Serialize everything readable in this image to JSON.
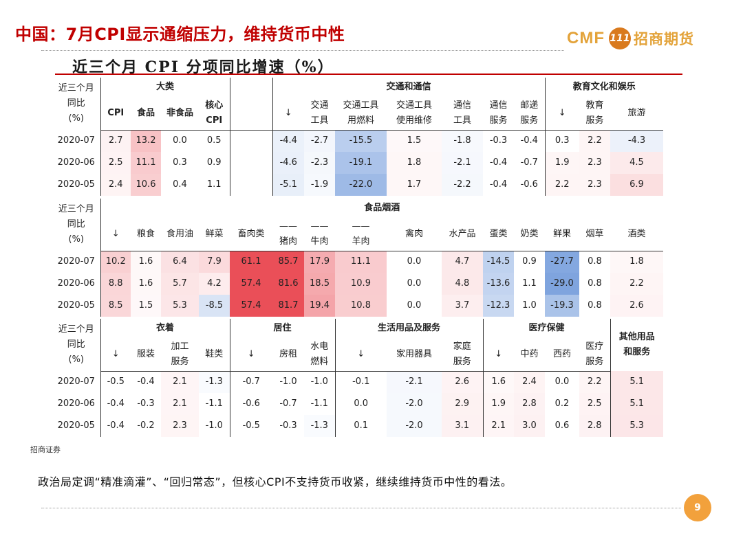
{
  "header": {
    "title": "中国：7月CPI显示通缩压力，维持货币中性",
    "logo_latin": "CMF",
    "logo_mark": "111",
    "logo_cn": "招商期货"
  },
  "chart_title": "近三个月 CPI 分项同比增速（%）",
  "rowhead": [
    "近三个月",
    "同比",
    "(%)"
  ],
  "months": [
    "2020-07",
    "2020-06",
    "2020-05"
  ],
  "heat_colors": {
    "neg": "#4a7fd1",
    "pos": "#e8404a"
  },
  "blocks": [
    {
      "groups": [
        {
          "label": "大类",
          "span": 4
        },
        {
          "label": "",
          "span": 1
        },
        {
          "label": "交通和通信",
          "span": 7
        },
        {
          "label": "教育文化和娱乐",
          "span": 3
        }
      ],
      "cols": [
        {
          "l": [
            "CPI"
          ],
          "b": true,
          "w": 44
        },
        {
          "l": [
            "食品"
          ],
          "b": true,
          "w": 44
        },
        {
          "l": [
            "非食品"
          ],
          "b": true,
          "w": 55
        },
        {
          "l": [
            "核心",
            "CPI"
          ],
          "b": true,
          "w": 45,
          "rl": true
        },
        {
          "l": [
            ""
          ],
          "w": 62,
          "rl": true
        },
        {
          "l": [
            "↓"
          ],
          "w": 46
        },
        {
          "l": [
            "交通",
            "工具"
          ],
          "w": 45
        },
        {
          "l": [
            "交通工具",
            "用燃料"
          ],
          "w": 75
        },
        {
          "l": [
            "交通工具",
            "使用维修"
          ],
          "w": 80
        },
        {
          "l": [
            "通信",
            "工具"
          ],
          "w": 60
        },
        {
          "l": [
            "通信",
            "服务"
          ],
          "w": 45
        },
        {
          "l": [
            "邮递",
            "服务"
          ],
          "w": 45,
          "rl": true
        },
        {
          "l": [
            "↓"
          ],
          "w": 50
        },
        {
          "l": [
            "教育",
            "服务"
          ],
          "w": 45
        },
        {
          "l": [
            "旅游"
          ],
          "w": 77
        }
      ],
      "rows": [
        [
          "2.7",
          "13.2",
          "0.0",
          "0.5",
          "",
          "-4.4",
          "-2.7",
          "-15.5",
          "1.5",
          "-1.8",
          "-0.3",
          "-0.4",
          "0.3",
          "2.2",
          "-4.3"
        ],
        [
          "2.5",
          "11.1",
          "0.3",
          "0.9",
          "",
          "-4.6",
          "-2.3",
          "-19.1",
          "1.8",
          "-2.1",
          "-0.4",
          "-0.7",
          "1.9",
          "2.3",
          "4.5"
        ],
        [
          "2.4",
          "10.6",
          "0.4",
          "1.1",
          "",
          "-5.1",
          "-1.9",
          "-22.0",
          "1.7",
          "-2.2",
          "-0.4",
          "-0.6",
          "2.2",
          "2.3",
          "6.9"
        ]
      ]
    },
    {
      "groups": [
        {
          "label": "食品烟酒",
          "span": 15
        }
      ],
      "cols": [
        {
          "l": [
            "↓"
          ],
          "w": 44
        },
        {
          "l": [
            "粮食"
          ],
          "w": 44
        },
        {
          "l": [
            "食用油"
          ],
          "w": 55
        },
        {
          "l": [
            "鲜菜"
          ],
          "w": 45
        },
        {
          "l": [
            "畜肉类"
          ],
          "w": 62
        },
        {
          "l": [
            "——",
            "猪肉"
          ],
          "w": 46
        },
        {
          "l": [
            "——",
            "牛肉"
          ],
          "w": 45
        },
        {
          "l": [
            "——",
            "羊肉"
          ],
          "w": 75
        },
        {
          "l": [
            "禽肉"
          ],
          "w": 80
        },
        {
          "l": [
            "水产品"
          ],
          "w": 60
        },
        {
          "l": [
            "蛋类"
          ],
          "w": 45
        },
        {
          "l": [
            "奶类"
          ],
          "w": 45
        },
        {
          "l": [
            "鲜果"
          ],
          "w": 50
        },
        {
          "l": [
            "烟草"
          ],
          "w": 45
        },
        {
          "l": [
            "酒类"
          ],
          "w": 77
        }
      ],
      "rows": [
        [
          "10.2",
          "1.6",
          "6.4",
          "7.9",
          "61.1",
          "85.7",
          "17.9",
          "11.1",
          "0.0",
          "4.7",
          "-14.5",
          "0.9",
          "-27.7",
          "0.8",
          "1.8"
        ],
        [
          "8.8",
          "1.6",
          "5.7",
          "4.2",
          "57.4",
          "81.6",
          "18.5",
          "10.9",
          "0.0",
          "4.8",
          "-13.6",
          "1.1",
          "-29.0",
          "0.8",
          "2.2"
        ],
        [
          "8.5",
          "1.5",
          "5.3",
          "-8.5",
          "57.4",
          "81.7",
          "19.4",
          "10.8",
          "0.0",
          "3.7",
          "-12.3",
          "1.0",
          "-19.3",
          "0.8",
          "2.6"
        ]
      ]
    },
    {
      "groups": [
        {
          "label": "衣着",
          "span": 4
        },
        {
          "label": "居住",
          "span": 3
        },
        {
          "label": "生活用品及服务",
          "span": 3
        },
        {
          "label": "医疗保健",
          "span": 4
        },
        {
          "label": "其他用品\n和服务",
          "span": 1,
          "rowspan": 2
        }
      ],
      "cols": [
        {
          "l": [
            "↓"
          ],
          "w": 44
        },
        {
          "l": [
            "服装"
          ],
          "w": 44
        },
        {
          "l": [
            "加工",
            "服务"
          ],
          "w": 55
        },
        {
          "l": [
            "鞋类"
          ],
          "w": 45,
          "rl": true
        },
        {
          "l": [
            "↓"
          ],
          "w": 62
        },
        {
          "l": [
            "房租"
          ],
          "w": 46
        },
        {
          "l": [
            "水电",
            "燃料"
          ],
          "w": 45,
          "rl": true
        },
        {
          "l": [
            "↓"
          ],
          "w": 75
        },
        {
          "l": [
            "家用器具"
          ],
          "w": 80
        },
        {
          "l": [
            "家庭",
            "服务"
          ],
          "w": 60,
          "rl": true
        },
        {
          "l": [
            "↓"
          ],
          "w": 45
        },
        {
          "l": [
            "中药"
          ],
          "w": 45
        },
        {
          "l": [
            "西药"
          ],
          "w": 50
        },
        {
          "l": [
            "医疗",
            "服务"
          ],
          "w": 45,
          "rl": true
        },
        {
          "l": [],
          "w": 77
        }
      ],
      "rows": [
        [
          "-0.5",
          "-0.4",
          "2.1",
          "-1.3",
          "-0.7",
          "-1.0",
          "-1.0",
          "-0.1",
          "-2.1",
          "2.6",
          "1.6",
          "2.4",
          "0.0",
          "2.2",
          "5.1"
        ],
        [
          "-0.4",
          "-0.3",
          "2.1",
          "-1.1",
          "-0.6",
          "-0.7",
          "-1.1",
          "0.0",
          "-2.0",
          "2.9",
          "1.9",
          "2.8",
          "0.2",
          "2.5",
          "5.1"
        ],
        [
          "-0.4",
          "-0.2",
          "2.3",
          "-1.0",
          "-0.5",
          "-0.3",
          "-1.3",
          "0.1",
          "-2.0",
          "3.1",
          "2.1",
          "3.0",
          "0.6",
          "2.8",
          "5.3"
        ]
      ]
    }
  ],
  "source": "招商证券",
  "note": "政治局定调“精准滴灌”、“回归常态”，但核心CPI不支持货币收紧，继续维持货币中性的看法。",
  "page_number": "9"
}
